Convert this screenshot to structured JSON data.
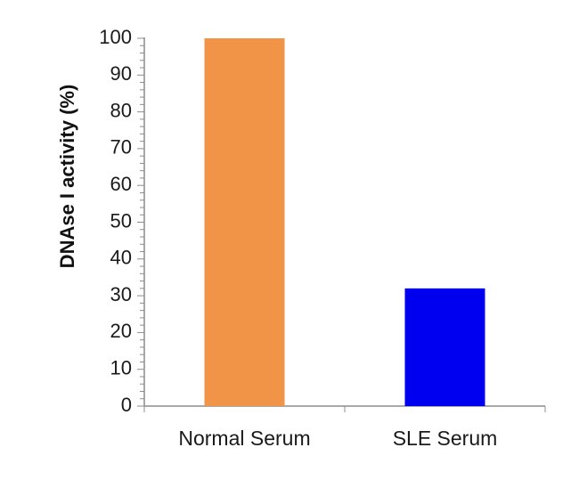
{
  "chart_data": {
    "type": "bar",
    "categories": [
      "Normal Serum",
      "SLE Serum"
    ],
    "values": [
      100,
      32
    ],
    "colors": [
      "#f29447",
      "#0000f0"
    ],
    "title": "",
    "xlabel": "",
    "ylabel": "DNAse  I activity (%)",
    "ylim": [
      0,
      100
    ],
    "major_step": 10,
    "minor_step": 2,
    "yticks": [
      "0",
      "10",
      "20",
      "30",
      "40",
      "50",
      "60",
      "70",
      "80",
      "90",
      "100"
    ],
    "grid": false,
    "legend": "none"
  }
}
